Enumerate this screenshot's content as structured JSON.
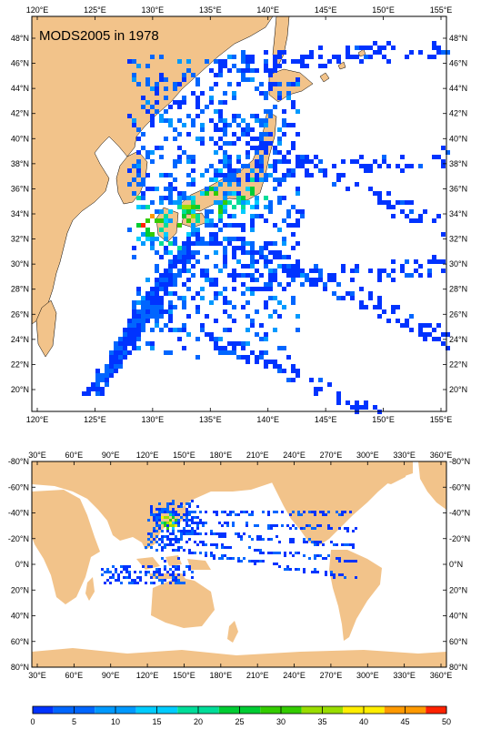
{
  "top_map": {
    "title": "MODS2005 in 1978",
    "x_ticks": [
      "120°E",
      "125°E",
      "130°E",
      "135°E",
      "140°E",
      "145°E",
      "150°E",
      "155°E"
    ],
    "y_ticks": [
      "20°N",
      "22°N",
      "24°N",
      "26°N",
      "28°N",
      "30°N",
      "32°N",
      "34°N",
      "36°N",
      "38°N",
      "40°N",
      "42°N",
      "44°N",
      "46°N",
      "48°N"
    ],
    "land_color": "#f2c38a",
    "ocean_color": "#ffffff"
  },
  "bottom_map": {
    "x_ticks": [
      "30°E",
      "60°E",
      "90°E",
      "120°E",
      "150°E",
      "180°E",
      "210°E",
      "240°E",
      "270°E",
      "300°E",
      "330°E",
      "360°E"
    ],
    "y_ticks": [
      "80°N",
      "60°N",
      "40°N",
      "20°N",
      "0°N",
      "-20°N",
      "-40°N",
      "-60°N",
      "-80°N"
    ],
    "land_color": "#f2c38a"
  },
  "colorbar": {
    "labels": [
      "0",
      "5",
      "10",
      "15",
      "20",
      "25",
      "30",
      "35",
      "40",
      "45",
      "50"
    ],
    "colors": [
      "#0033ff",
      "#0066ff",
      "#0099ff",
      "#00ccff",
      "#00dd99",
      "#00cc33",
      "#33cc00",
      "#99dd00",
      "#ffee00",
      "#ff9900",
      "#ff2200"
    ]
  }
}
